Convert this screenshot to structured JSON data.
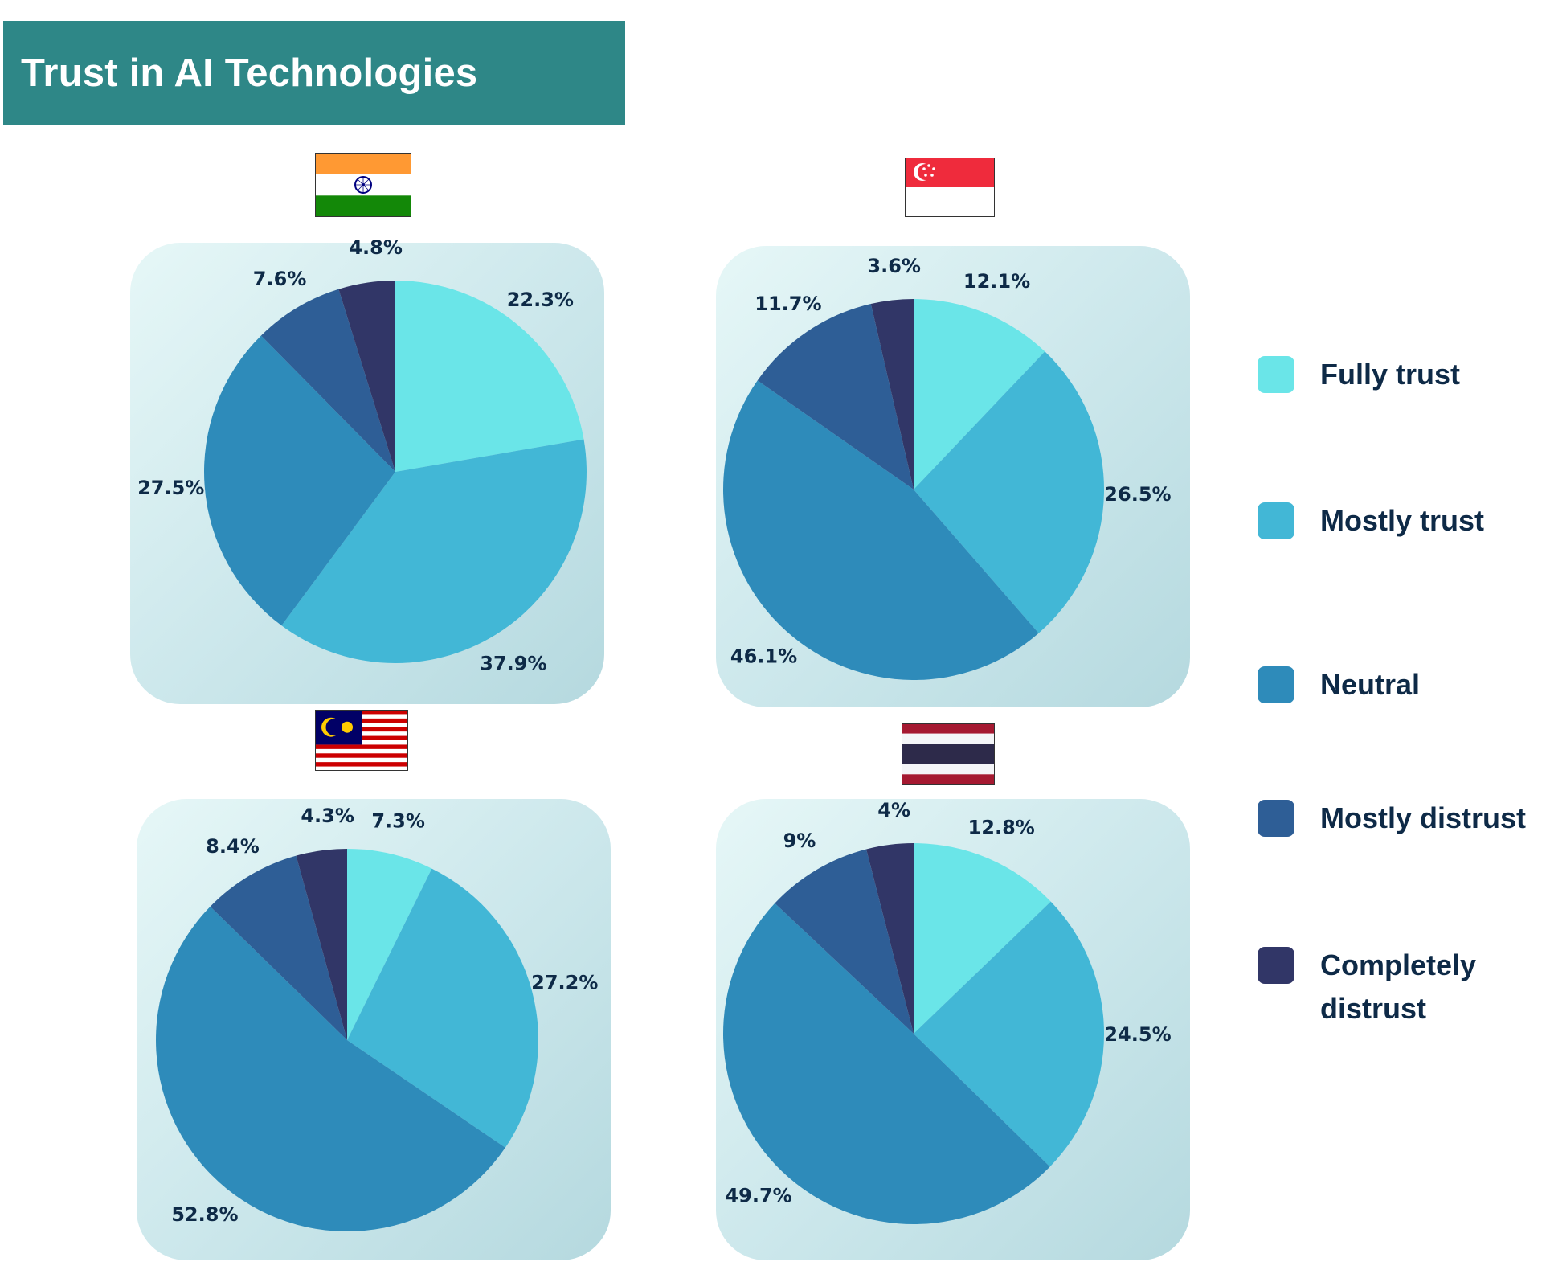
{
  "title": "Trust in AI Technologies",
  "colors": {
    "fully_trust": "#6ae5e8",
    "mostly_trust": "#42b7d6",
    "neutral": "#2e8bba",
    "mostly_distrust": "#2e5e96",
    "completely_distrust": "#313667"
  },
  "legend": {
    "items": [
      {
        "label": "Fully trust",
        "color": "#6ae5e8"
      },
      {
        "label": "Mostly trust",
        "color": "#42b7d6"
      },
      {
        "label": "Neutral",
        "color": "#2e8bba"
      },
      {
        "label": "Mostly distrust",
        "color": "#2e5e96"
      },
      {
        "label": "Completely distrust",
        "color": "#313667"
      }
    ]
  },
  "flags": {
    "india": "india-flag-icon",
    "singapore": "singapore-flag-icon",
    "malaysia": "malaysia-flag-icon",
    "thailand": "thailand-flag-icon"
  },
  "chart_data": [
    {
      "type": "pie",
      "flag": "india-flag-icon",
      "categories": [
        "Fully trust",
        "Mostly trust",
        "Neutral",
        "Mostly distrust",
        "Completely distrust"
      ],
      "values": [
        22.3,
        37.9,
        27.5,
        7.6,
        4.8
      ],
      "labels": [
        "22.3%",
        "37.9%",
        "27.5%",
        "7.6%",
        "4.8%"
      ]
    },
    {
      "type": "pie",
      "flag": "singapore-flag-icon",
      "categories": [
        "Fully trust",
        "Mostly trust",
        "Neutral",
        "Mostly distrust",
        "Completely distrust"
      ],
      "values": [
        12.1,
        26.5,
        46.1,
        11.7,
        3.6
      ],
      "labels": [
        "12.1%",
        "26.5%",
        "46.1%",
        "11.7%",
        "3.6%"
      ]
    },
    {
      "type": "pie",
      "flag": "malaysia-flag-icon",
      "categories": [
        "Fully trust",
        "Mostly trust",
        "Neutral",
        "Mostly distrust",
        "Completely distrust"
      ],
      "values": [
        7.3,
        27.2,
        52.8,
        8.4,
        4.3
      ],
      "labels": [
        "7.3%",
        "27.2%",
        "52.8%",
        "8.4%",
        "4.3%"
      ]
    },
    {
      "type": "pie",
      "flag": "thailand-flag-icon",
      "categories": [
        "Fully trust",
        "Mostly trust",
        "Neutral",
        "Mostly distrust",
        "Completely distrust"
      ],
      "values": [
        12.8,
        24.5,
        49.7,
        9,
        4
      ],
      "labels": [
        "12.8%",
        "24.5%",
        "49.7%",
        "9%",
        "4%"
      ]
    }
  ]
}
